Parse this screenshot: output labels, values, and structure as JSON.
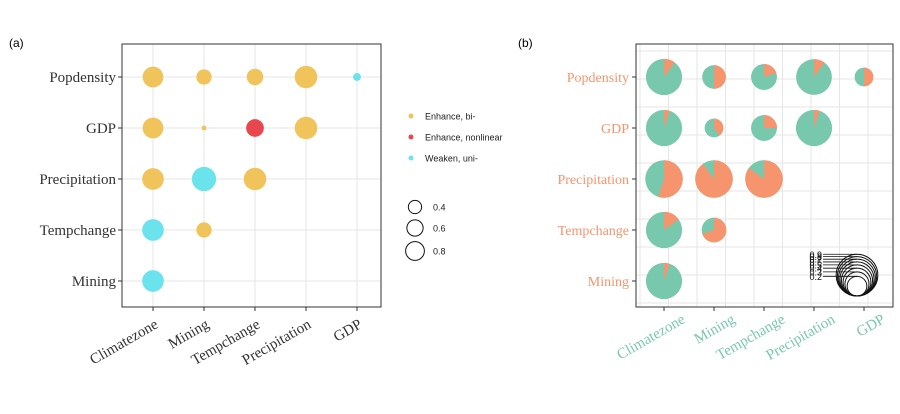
{
  "colors": {
    "bi": "#F0C45A",
    "nonlinear": "#E8474F",
    "uni": "#6AE3EC",
    "pie_a": "#F6946E",
    "pie_b": "#78C8AE",
    "grid": "#e6e6e6",
    "frame": "#333333"
  },
  "panel_a": {
    "tag": "(a)",
    "legend_color": [
      {
        "key": "bi",
        "label": "Enhance, bi-"
      },
      {
        "key": "nonlinear",
        "label": "Enhance, nonlinear"
      },
      {
        "key": "uni",
        "label": "Weaken, uni-"
      }
    ],
    "legend_size": [
      {
        "value": 0.4,
        "label": "0.4"
      },
      {
        "value": 0.6,
        "label": "0.6"
      },
      {
        "value": 0.8,
        "label": "0.8"
      }
    ]
  },
  "panel_b": {
    "tag": "(b)",
    "size_legend_labels": [
      "0.9",
      "0.8",
      "0.7",
      "0.6",
      "0.5",
      "0.4",
      "0.3",
      "0.2"
    ]
  },
  "chart_data": [
    {
      "type": "scatter",
      "panel": "a",
      "x_categories": [
        "Climatezone",
        "Mining",
        "Tempchange",
        "Precipitation",
        "GDP"
      ],
      "y_categories": [
        "Popdensity",
        "GDP",
        "Precipitation",
        "Tempchange",
        "Mining"
      ],
      "points": [
        {
          "x": "Climatezone",
          "y": "Popdensity",
          "value": 0.55,
          "type": "bi"
        },
        {
          "x": "Mining",
          "y": "Popdensity",
          "value": 0.3,
          "type": "bi"
        },
        {
          "x": "Tempchange",
          "y": "Popdensity",
          "value": 0.35,
          "type": "bi"
        },
        {
          "x": "Precipitation",
          "y": "Popdensity",
          "value": 0.65,
          "type": "bi"
        },
        {
          "x": "GDP",
          "y": "Popdensity",
          "value": 0.08,
          "type": "uni"
        },
        {
          "x": "Climatezone",
          "y": "GDP",
          "value": 0.55,
          "type": "bi"
        },
        {
          "x": "Mining",
          "y": "GDP",
          "value": 0.03,
          "type": "bi"
        },
        {
          "x": "Tempchange",
          "y": "GDP",
          "value": 0.4,
          "type": "nonlinear"
        },
        {
          "x": "Precipitation",
          "y": "GDP",
          "value": 0.65,
          "type": "bi"
        },
        {
          "x": "Climatezone",
          "y": "Precipitation",
          "value": 0.6,
          "type": "bi"
        },
        {
          "x": "Mining",
          "y": "Precipitation",
          "value": 0.75,
          "type": "uni"
        },
        {
          "x": "Tempchange",
          "y": "Precipitation",
          "value": 0.65,
          "type": "bi"
        },
        {
          "x": "Climatezone",
          "y": "Tempchange",
          "value": 0.6,
          "type": "uni"
        },
        {
          "x": "Mining",
          "y": "Tempchange",
          "value": 0.3,
          "type": "bi"
        },
        {
          "x": "Climatezone",
          "y": "Mining",
          "value": 0.6,
          "type": "uni"
        }
      ]
    },
    {
      "type": "pie",
      "panel": "b",
      "x_categories": [
        "Climatezone",
        "Mining",
        "Tempchange",
        "Precipitation",
        "GDP"
      ],
      "y_categories": [
        "Popdensity",
        "GDP",
        "Precipitation",
        "Tempchange",
        "Mining"
      ],
      "pies": [
        {
          "x": "Climatezone",
          "y": "Popdensity",
          "size": 0.82,
          "orange": 0.1
        },
        {
          "x": "Mining",
          "y": "Popdensity",
          "size": 0.35,
          "orange": 0.5
        },
        {
          "x": "Tempchange",
          "y": "Popdensity",
          "size": 0.42,
          "orange": 0.2
        },
        {
          "x": "Precipitation",
          "y": "Popdensity",
          "size": 0.8,
          "orange": 0.1
        },
        {
          "x": "GDP",
          "y": "Popdensity",
          "size": 0.22,
          "orange": 0.5
        },
        {
          "x": "Climatezone",
          "y": "GDP",
          "size": 0.82,
          "orange": 0.05
        },
        {
          "x": "Mining",
          "y": "GDP",
          "size": 0.22,
          "orange": 0.4
        },
        {
          "x": "Tempchange",
          "y": "GDP",
          "size": 0.42,
          "orange": 0.25
        },
        {
          "x": "Precipitation",
          "y": "GDP",
          "size": 0.82,
          "orange": 0.05
        },
        {
          "x": "Climatezone",
          "y": "Precipitation",
          "size": 0.88,
          "orange": 0.55
        },
        {
          "x": "Mining",
          "y": "Precipitation",
          "size": 0.88,
          "orange": 0.9
        },
        {
          "x": "Tempchange",
          "y": "Precipitation",
          "size": 0.88,
          "orange": 0.85
        },
        {
          "x": "Climatezone",
          "y": "Tempchange",
          "size": 0.82,
          "orange": 0.15
        },
        {
          "x": "Mining",
          "y": "Tempchange",
          "size": 0.38,
          "orange": 0.7
        },
        {
          "x": "Climatezone",
          "y": "Mining",
          "size": 0.82,
          "orange": 0.05
        }
      ]
    }
  ]
}
